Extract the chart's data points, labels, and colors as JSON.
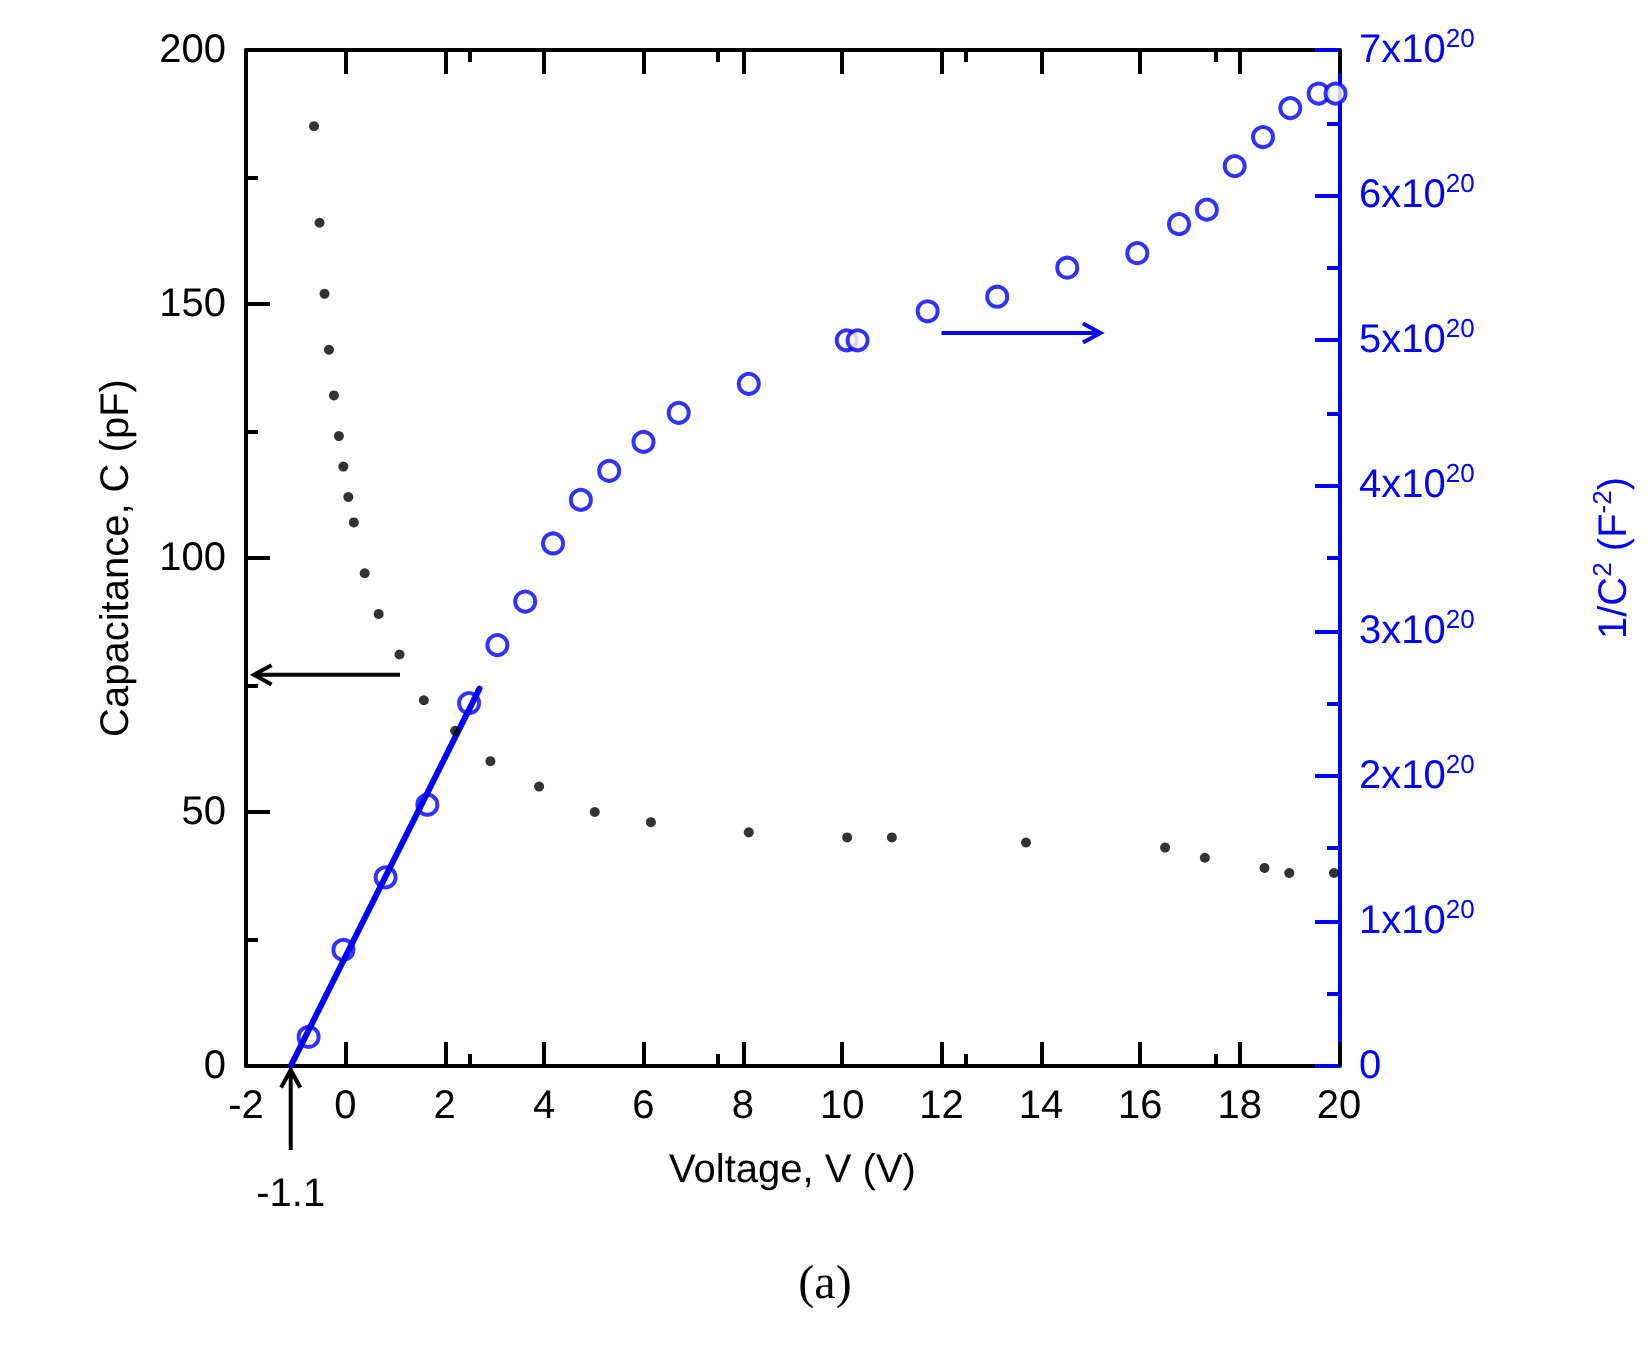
{
  "chart_data": {
    "type": "scatter",
    "xlabel": "Voltage, V (V)",
    "ylabel": "Capacitance, C (pF)",
    "y2label": "1/C$^{2}$ (F$^{-2}$)",
    "xlim": [
      -2,
      20
    ],
    "xticks": [
      -2,
      0,
      2,
      4,
      6,
      8,
      10,
      12,
      14,
      16,
      18,
      20
    ],
    "ylim": [
      0,
      200
    ],
    "yticks": [
      0,
      50,
      100,
      150,
      200
    ],
    "y2lim": [
      0,
      7e+20
    ],
    "y2ticks": [
      0,
      {
        "value": 1e+20,
        "label": "1x10$^{20}$"
      },
      {
        "value": 2e+20,
        "label": "2x10$^{20}$"
      },
      {
        "value": 3e+20,
        "label": "3x10$^{20}$"
      },
      {
        "value": 4e+20,
        "label": "4x10$^{20}$"
      },
      {
        "value": 5e+20,
        "label": "5x10$^{20}$"
      },
      {
        "value": 6e+20,
        "label": "6x10$^{20}$"
      },
      {
        "value": 7e+20,
        "label": "7x10$^{20}$"
      }
    ],
    "grid": false,
    "legend": false,
    "marker": "circle",
    "series": [
      {
        "color": "#000000",
        "x": [
          -0.63,
          -0.52,
          -0.42,
          -0.33,
          -0.23,
          -0.13,
          -0.04,
          0.06,
          0.17,
          0.39,
          0.67,
          1.09,
          1.58,
          2.21,
          2.92,
          3.9,
          5.02,
          6.15,
          8.12,
          10.1,
          11,
          13.7,
          16.5,
          17.3,
          18.5,
          19,
          19.9
        ],
        "values": [
          185,
          166,
          152,
          141,
          132,
          124,
          118,
          112,
          107,
          97,
          89,
          81,
          72,
          66,
          60,
          55,
          50,
          48,
          46,
          45,
          45,
          44,
          43,
          41,
          39,
          38,
          38
        ]
      },
      {
        "color": "#0000ff",
        "axis": "y2",
        "x": [
          -0.74,
          -0.04,
          0.81,
          1.65,
          2.49,
          3.06,
          3.62,
          4.18,
          4.74,
          5.31,
          6.0,
          6.71,
          8.12,
          10.09,
          10.31,
          11.72,
          13.12,
          14.53,
          15.94,
          16.78,
          17.34,
          17.9,
          18.47,
          19.02,
          19.59,
          19.93
        ],
        "values": [
          2e+19,
          8e+19,
          1.3e+20,
          1.8e+20,
          2.5e+20,
          2.9e+20,
          3.2e+20,
          3.6e+20,
          3.9e+20,
          4.1e+20,
          4.3e+20,
          4.5e+20,
          4.7e+20,
          5e+20,
          5e+20,
          5.2e+20,
          5.3e+20,
          5.5e+20,
          5.6e+20,
          5.8e+20,
          5.9e+20,
          6.2e+20,
          6.4e+20,
          6.6e+20,
          6.7e+20,
          6.7e+20
        ]
      },
      {
        "type": "line",
        "color": "#0000ff",
        "axis": "y2",
        "marker": "none",
        "x": [
          -1.1,
          2.7
        ],
        "values": [
          0,
          2.6e+20
        ]
      }
    ],
    "annotations": [
      {
        "text": "-1.1",
        "x": -1.1,
        "y": 0
      },
      "(a)"
    ]
  }
}
